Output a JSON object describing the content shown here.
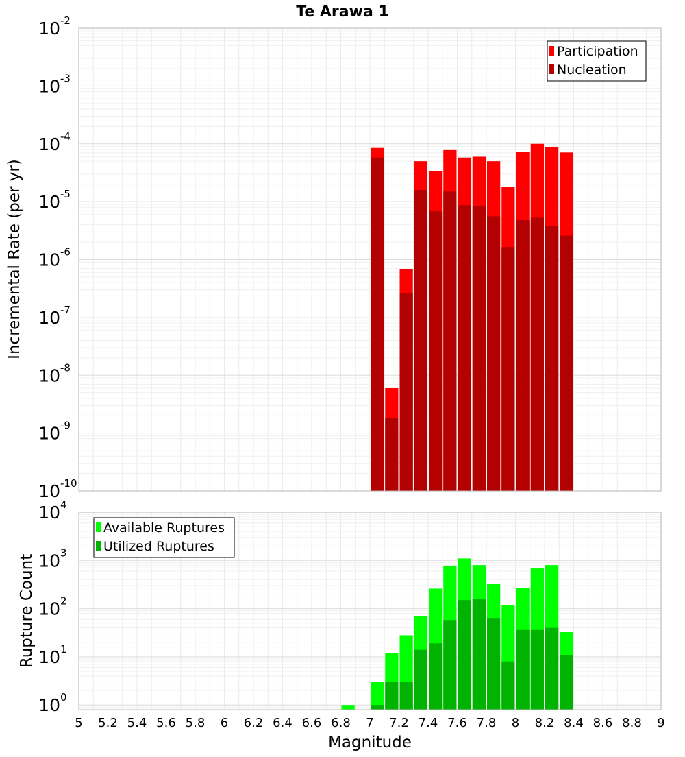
{
  "chart_data": [
    {
      "type": "bar",
      "title": "Te Arawa 1",
      "ylabel": "Incremental Rate (per yr)",
      "xlabel": "",
      "x_range": [
        5,
        9
      ],
      "y_scale": "log",
      "ylim": [
        1e-10,
        0.01
      ],
      "y_tick_exponents": [
        -10,
        -9,
        -8,
        -7,
        -6,
        -5,
        -4,
        -3,
        -2
      ],
      "grid": true,
      "legend_position": "top-right",
      "overlay": true,
      "x": [
        7.05,
        7.15,
        7.25,
        7.35,
        7.45,
        7.55,
        7.65,
        7.75,
        7.85,
        7.95,
        8.05,
        8.15,
        8.25,
        8.35
      ],
      "series": [
        {
          "name": "Participation",
          "color": "#ff0000",
          "values": [
            8.5e-05,
            6e-09,
            6.8e-07,
            5e-05,
            3.4e-05,
            7.8e-05,
            5.8e-05,
            6e-05,
            5e-05,
            1.8e-05,
            7.3e-05,
            0.0001,
            8.7e-05,
            7.1e-05
          ]
        },
        {
          "name": "Nucleation",
          "color": "#b30000",
          "values": [
            5.8e-05,
            1.8e-09,
            2.6e-07,
            1.6e-05,
            6.8e-06,
            1.5e-05,
            8.7e-06,
            8.3e-06,
            5.6e-06,
            1.65e-06,
            4.8e-06,
            5.3e-06,
            3.8e-06,
            2.6e-06
          ]
        }
      ]
    },
    {
      "type": "bar",
      "title": "",
      "ylabel": "Rupture Count",
      "xlabel": "Magnitude",
      "x_range": [
        5,
        9
      ],
      "x_ticks": [
        "5",
        "5.2",
        "5.4",
        "5.6",
        "5.8",
        "6",
        "6.2",
        "6.4",
        "6.6",
        "6.8",
        "7",
        "7.2",
        "7.4",
        "7.6",
        "7.8",
        "8",
        "8.2",
        "8.4",
        "8.6",
        "8.8",
        "9"
      ],
      "y_scale": "log",
      "ylim": [
        0.8,
        10000
      ],
      "y_tick_exponents": [
        0,
        1,
        2,
        3,
        4
      ],
      "grid": true,
      "legend_position": "top-left",
      "overlay": true,
      "x": [
        6.85,
        7.05,
        7.15,
        7.25,
        7.35,
        7.45,
        7.55,
        7.65,
        7.75,
        7.85,
        7.95,
        8.05,
        8.15,
        8.25,
        8.35
      ],
      "series": [
        {
          "name": "Available Ruptures",
          "color": "#00ff00",
          "values": [
            1,
            3,
            12,
            28,
            70,
            260,
            780,
            1100,
            800,
            330,
            120,
            270,
            680,
            800,
            33
          ]
        },
        {
          "name": "Utilized Ruptures",
          "color": "#00b300",
          "values": [
            null,
            1,
            3,
            3,
            14,
            19,
            58,
            150,
            160,
            62,
            8,
            36,
            36,
            40,
            11
          ]
        }
      ]
    }
  ]
}
